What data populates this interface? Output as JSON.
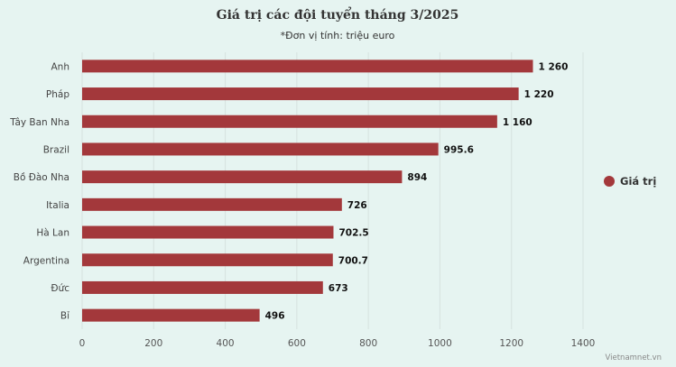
{
  "chart_data": {
    "type": "bar",
    "orientation": "horizontal",
    "title": "Giá trị các đội tuyển tháng 3/2025",
    "subtitle": "*Đơn vị tính: triệu euro",
    "categories": [
      "Anh",
      "Pháp",
      "Tây Ban Nha",
      "Brazil",
      "Bồ Đào Nha",
      "Italia",
      "Hà Lan",
      "Argentina",
      "Đức",
      "Bỉ"
    ],
    "series": [
      {
        "name": "Giá trị",
        "color": "#a3383b",
        "values": [
          1260,
          1220,
          1160,
          995.6,
          894,
          726,
          702.5,
          700.7,
          673,
          496
        ],
        "value_labels": [
          "1 260",
          "1 220",
          "1 160",
          "995.6",
          "894",
          "726",
          "702.5",
          "700.7",
          "673",
          "496"
        ]
      }
    ],
    "xlim": [
      0,
      1400
    ],
    "xticks": [
      0,
      200,
      400,
      600,
      800,
      1000,
      1200,
      1400
    ],
    "grid": true,
    "legend_position": "right"
  },
  "credit": "Vietnamnet.vn"
}
